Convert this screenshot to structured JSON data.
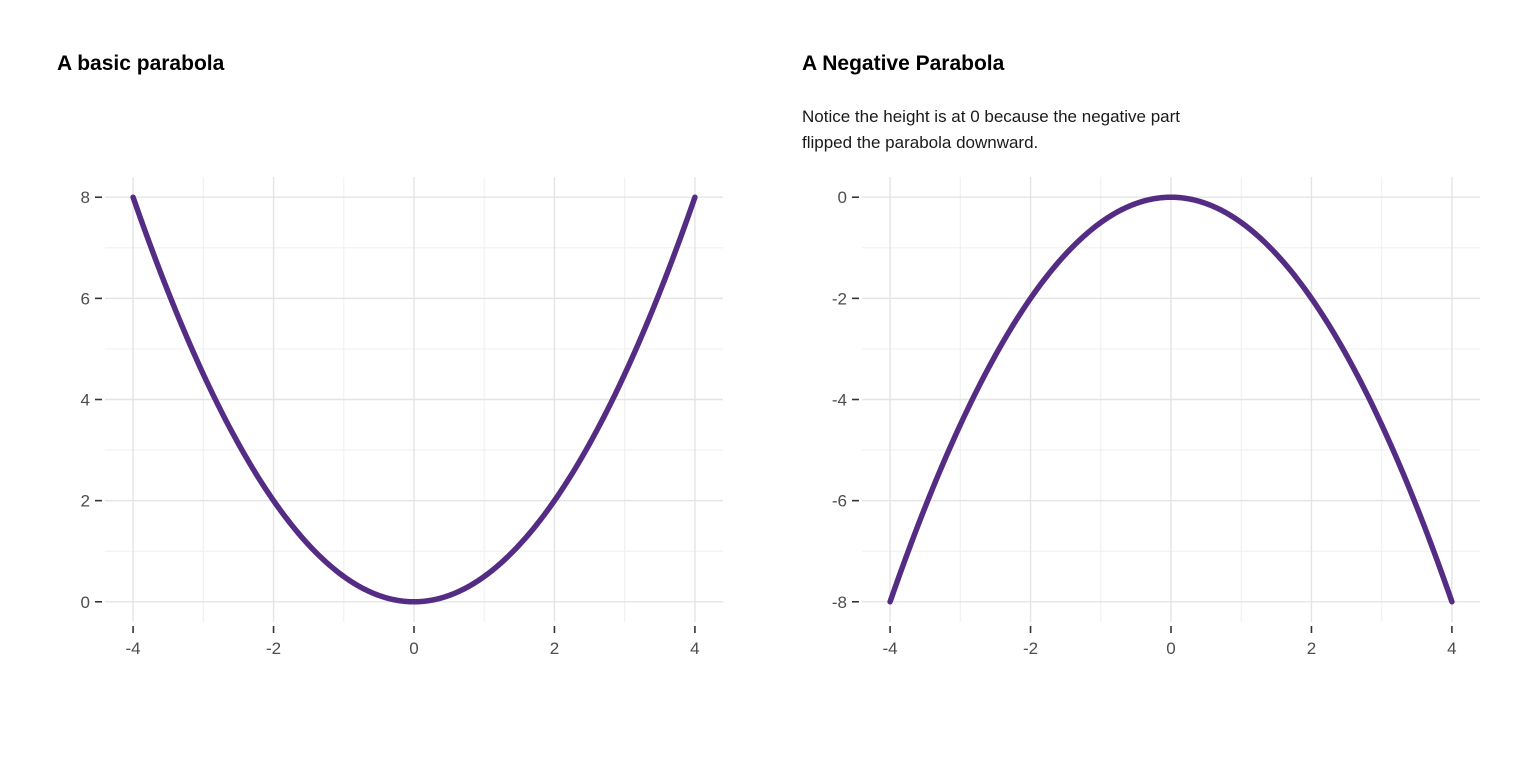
{
  "theme": {
    "background": "#ffffff",
    "grid_major_color": "#e4e4e4",
    "grid_minor_color": "#f1f1f1",
    "tick_mark_color": "#333333",
    "tick_label_color": "#4d4d4d",
    "title_color": "#000000",
    "curve_color": "#542c84"
  },
  "chart_data": [
    {
      "type": "line",
      "title": "A basic parabola",
      "subtitle_lines": [],
      "xlabel": "",
      "ylabel": "",
      "legend": "none",
      "grid": "major+minor",
      "equation": "y = x^2 / 2",
      "coeff_a": 0.5,
      "x_range": [
        -4,
        4
      ],
      "xlim": [
        -4.4,
        4.4
      ],
      "ylim": [
        -0.4,
        8.4
      ],
      "x_ticks": [
        -4,
        -2,
        0,
        2,
        4
      ],
      "y_ticks": [
        0,
        2,
        4,
        6,
        8
      ],
      "x_minor_ticks": [
        -3,
        -1,
        1,
        3
      ],
      "y_minor_ticks": [
        1,
        3,
        5,
        7
      ],
      "line_color": "#542c84",
      "line_width": 5.5,
      "points": [
        [
          -4,
          8
        ],
        [
          -3.5,
          6.125
        ],
        [
          -3,
          4.5
        ],
        [
          -2.5,
          3.125
        ],
        [
          -2,
          2
        ],
        [
          -1.5,
          1.125
        ],
        [
          -1,
          0.5
        ],
        [
          -0.5,
          0.125
        ],
        [
          0,
          0
        ],
        [
          0.5,
          0.125
        ],
        [
          1,
          0.5
        ],
        [
          1.5,
          1.125
        ],
        [
          2,
          2
        ],
        [
          2.5,
          3.125
        ],
        [
          3,
          4.5
        ],
        [
          3.5,
          6.125
        ],
        [
          4,
          8
        ]
      ]
    },
    {
      "type": "line",
      "title": "A Negative Parabola",
      "subtitle_lines": [
        "Notice the height is at 0 because the negative part",
        "flipped the parabola downward."
      ],
      "xlabel": "",
      "ylabel": "",
      "legend": "none",
      "grid": "major+minor",
      "equation": "y = -x^2 / 2",
      "coeff_a": -0.5,
      "x_range": [
        -4,
        4
      ],
      "xlim": [
        -4.4,
        4.4
      ],
      "ylim": [
        -8.4,
        0.4
      ],
      "x_ticks": [
        -4,
        -2,
        0,
        2,
        4
      ],
      "y_ticks": [
        0,
        -2,
        -4,
        -6,
        -8
      ],
      "x_minor_ticks": [
        -3,
        -1,
        1,
        3
      ],
      "y_minor_ticks": [
        -1,
        -3,
        -5,
        -7
      ],
      "line_color": "#542c84",
      "line_width": 5.5,
      "points": [
        [
          -4,
          -8
        ],
        [
          -3.5,
          -6.125
        ],
        [
          -3,
          -4.5
        ],
        [
          -2.5,
          -3.125
        ],
        [
          -2,
          -2
        ],
        [
          -1.5,
          -1.125
        ],
        [
          -1,
          -0.5
        ],
        [
          -0.5,
          -0.125
        ],
        [
          0,
          0
        ],
        [
          0.5,
          -0.125
        ],
        [
          1,
          -0.5
        ],
        [
          1.5,
          -1.125
        ],
        [
          2,
          -2
        ],
        [
          2.5,
          -3.125
        ],
        [
          3,
          -4.5
        ],
        [
          3.5,
          -6.125
        ],
        [
          4,
          -8
        ]
      ]
    }
  ]
}
